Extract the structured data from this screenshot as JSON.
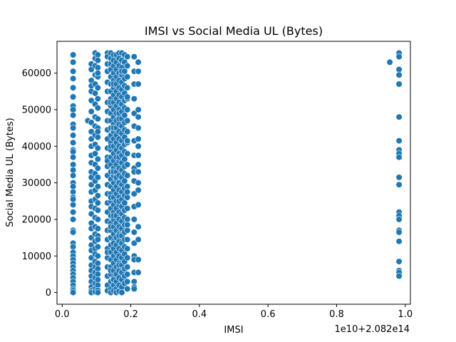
{
  "chart_data": {
    "type": "scatter",
    "title": "IMSI vs Social Media UL (Bytes)",
    "xlabel": "IMSI",
    "ylabel": "Social Media UL (Bytes)",
    "x_offset_label": "1e10+2.082e14",
    "xlim": [
      -0.015,
      1.015
    ],
    "ylim": [
      -3200,
      68700
    ],
    "x_ticks": [
      0.0,
      0.2,
      0.4,
      0.6,
      0.8,
      1.0
    ],
    "x_tick_labels": [
      "0.0",
      "0.2",
      "0.4",
      "0.6",
      "0.8",
      "1.0"
    ],
    "y_ticks": [
      0,
      10000,
      20000,
      30000,
      40000,
      50000,
      60000
    ],
    "y_tick_labels": [
      "0",
      "10000",
      "20000",
      "30000",
      "40000",
      "50000",
      "60000"
    ],
    "grid": false,
    "marker_color": "#1f77b4",
    "marker_edge_color": "#ffffff",
    "series": [
      {
        "x": [
          0.032,
          0.032,
          0.032,
          0.032,
          0.032,
          0.032,
          0.032,
          0.032,
          0.032,
          0.032,
          0.032,
          0.032,
          0.032,
          0.032,
          0.032,
          0.032,
          0.032,
          0.032,
          0.032,
          0.032,
          0.032,
          0.032,
          0.032,
          0.032,
          0.032,
          0.032,
          0.032,
          0.032,
          0.032,
          0.032,
          0.032,
          0.032,
          0.032,
          0.032,
          0.032,
          0.032,
          0.032,
          0.032,
          0.032,
          0.032,
          0.032,
          0.032,
          0.032,
          0.032,
          0.075,
          0.085,
          0.085,
          0.085,
          0.085,
          0.085,
          0.085,
          0.085,
          0.085,
          0.085,
          0.085,
          0.085,
          0.085,
          0.085,
          0.085,
          0.085,
          0.085,
          0.085,
          0.085,
          0.085,
          0.085,
          0.085,
          0.085,
          0.085,
          0.085,
          0.085,
          0.085,
          0.085,
          0.085,
          0.085,
          0.085,
          0.085,
          0.085,
          0.085,
          0.096,
          0.096,
          0.096,
          0.096,
          0.096,
          0.096,
          0.096,
          0.096,
          0.096,
          0.096,
          0.096,
          0.096,
          0.096,
          0.096,
          0.096,
          0.096,
          0.096,
          0.096,
          0.096,
          0.096,
          0.096,
          0.096,
          0.096,
          0.096,
          0.096,
          0.096,
          0.096,
          0.096,
          0.096,
          0.096,
          0.096,
          0.104,
          0.104,
          0.104,
          0.104,
          0.104,
          0.104,
          0.104,
          0.104,
          0.104,
          0.104,
          0.104,
          0.104,
          0.104,
          0.104,
          0.104,
          0.104,
          0.104,
          0.104,
          0.104,
          0.104,
          0.104,
          0.104,
          0.104,
          0.104,
          0.104,
          0.104,
          0.104,
          0.104,
          0.104,
          0.104,
          0.104,
          0.104,
          0.104,
          0.132,
          0.132,
          0.132,
          0.132,
          0.132,
          0.132,
          0.132,
          0.132,
          0.132,
          0.132,
          0.132,
          0.132,
          0.132,
          0.132,
          0.132,
          0.132,
          0.132,
          0.132,
          0.132,
          0.132,
          0.132,
          0.132,
          0.132,
          0.132,
          0.132,
          0.132,
          0.132,
          0.132,
          0.132,
          0.132,
          0.142,
          0.142,
          0.142,
          0.142,
          0.142,
          0.142,
          0.142,
          0.142,
          0.142,
          0.142,
          0.142,
          0.142,
          0.142,
          0.142,
          0.142,
          0.142,
          0.142,
          0.142,
          0.142,
          0.142,
          0.142,
          0.142,
          0.142,
          0.142,
          0.142,
          0.142,
          0.142,
          0.142,
          0.142,
          0.142,
          0.142,
          0.142,
          0.142,
          0.142,
          0.142,
          0.142,
          0.142,
          0.142,
          0.142,
          0.142,
          0.15,
          0.15,
          0.15,
          0.15,
          0.15,
          0.15,
          0.15,
          0.15,
          0.15,
          0.15,
          0.15,
          0.15,
          0.15,
          0.15,
          0.15,
          0.15,
          0.15,
          0.15,
          0.15,
          0.15,
          0.15,
          0.15,
          0.15,
          0.15,
          0.15,
          0.15,
          0.15,
          0.15,
          0.15,
          0.15,
          0.15,
          0.15,
          0.15,
          0.15,
          0.15,
          0.15,
          0.15,
          0.15,
          0.15,
          0.15,
          0.158,
          0.158,
          0.158,
          0.158,
          0.158,
          0.158,
          0.158,
          0.158,
          0.158,
          0.158,
          0.158,
          0.158,
          0.158,
          0.158,
          0.158,
          0.158,
          0.158,
          0.158,
          0.158,
          0.158,
          0.158,
          0.158,
          0.158,
          0.158,
          0.158,
          0.158,
          0.158,
          0.158,
          0.158,
          0.158,
          0.158,
          0.158,
          0.158,
          0.158,
          0.158,
          0.166,
          0.166,
          0.166,
          0.166,
          0.166,
          0.166,
          0.166,
          0.166,
          0.166,
          0.166,
          0.166,
          0.166,
          0.166,
          0.166,
          0.166,
          0.166,
          0.166,
          0.166,
          0.166,
          0.166,
          0.166,
          0.166,
          0.166,
          0.166,
          0.166,
          0.166,
          0.166,
          0.166,
          0.166,
          0.166,
          0.166,
          0.166,
          0.166,
          0.166,
          0.166,
          0.166,
          0.166,
          0.166,
          0.166,
          0.166,
          0.174,
          0.174,
          0.174,
          0.174,
          0.174,
          0.174,
          0.174,
          0.174,
          0.174,
          0.174,
          0.174,
          0.174,
          0.174,
          0.174,
          0.174,
          0.174,
          0.174,
          0.174,
          0.174,
          0.174,
          0.174,
          0.174,
          0.174,
          0.174,
          0.174,
          0.174,
          0.174,
          0.174,
          0.174,
          0.174,
          0.174,
          0.174,
          0.174,
          0.174,
          0.174,
          0.182,
          0.182,
          0.182,
          0.182,
          0.182,
          0.182,
          0.182,
          0.182,
          0.182,
          0.182,
          0.182,
          0.182,
          0.182,
          0.182,
          0.182,
          0.182,
          0.182,
          0.182,
          0.182,
          0.182,
          0.182,
          0.182,
          0.182,
          0.182,
          0.182,
          0.182,
          0.182,
          0.182,
          0.182,
          0.182,
          0.182,
          0.182,
          0.19,
          0.19,
          0.19,
          0.19,
          0.19,
          0.19,
          0.19,
          0.19,
          0.19,
          0.19,
          0.19,
          0.19,
          0.19,
          0.19,
          0.19,
          0.19,
          0.19,
          0.19,
          0.19,
          0.19,
          0.19,
          0.19,
          0.19,
          0.19,
          0.19,
          0.19,
          0.19,
          0.19,
          0.21,
          0.21,
          0.21,
          0.21,
          0.21,
          0.21,
          0.21,
          0.21,
          0.21,
          0.21,
          0.21,
          0.21,
          0.21,
          0.21,
          0.21,
          0.21,
          0.21,
          0.21,
          0.21,
          0.21,
          0.21,
          0.21,
          0.222,
          0.222,
          0.222,
          0.222,
          0.222,
          0.222,
          0.222,
          0.222,
          0.222,
          0.222,
          0.222,
          0.222,
          0.222,
          0.222,
          0.222,
          0.222,
          0.222,
          0.222,
          0.955,
          0.982,
          0.982,
          0.982,
          0.982,
          0.982,
          0.982,
          0.982,
          0.982,
          0.982,
          0.982,
          0.982,
          0.982,
          0.982,
          0.982,
          0.982,
          0.982,
          0.982,
          0.982,
          0.982,
          0.982,
          0.982,
          0.982
        ],
        "y": [
          65000,
          63000,
          60500,
          58500,
          56000,
          53500,
          51000,
          50000,
          48500,
          46000,
          43000,
          41000,
          39000,
          38500,
          37000,
          35000,
          33500,
          32000,
          30000,
          29000,
          27500,
          26000,
          24000,
          22000,
          20000,
          17000,
          16500,
          13500,
          12500,
          11000,
          10000,
          9000,
          8000,
          7000,
          6000,
          5000,
          4000,
          3000,
          2000,
          1000,
          500,
          0,
          45000,
          25500,
          47000,
          62500,
          61000,
          58000,
          56500,
          55000,
          52500,
          49500,
          46500,
          44000,
          42000,
          40000,
          37500,
          35500,
          33000,
          31500,
          29500,
          27500,
          25000,
          23500,
          21500,
          19000,
          17500,
          15000,
          13000,
          11500,
          9500,
          7500,
          6000,
          4500,
          3000,
          1500,
          500,
          0,
          65500,
          64000,
          62000,
          59500,
          57000,
          54500,
          51500,
          48000,
          45500,
          43000,
          40500,
          38000,
          35000,
          32500,
          30500,
          28000,
          25500,
          23000,
          20500,
          18000,
          16000,
          14000,
          12000,
          10500,
          8500,
          7000,
          5500,
          4000,
          2500,
          1000,
          200,
          65000,
          63500,
          61500,
          59000,
          56000,
          53000,
          50500,
          47500,
          45000,
          42500,
          39500,
          36500,
          34000,
          31500,
          29000,
          26500,
          24500,
          22500,
          20000,
          17500,
          15500,
          14500,
          12500,
          10000,
          8000,
          6500,
          5000,
          3500,
          2000,
          600,
          0,
          44000,
          60000,
          65500,
          64500,
          62500,
          60500,
          57500,
          55000,
          52000,
          49500,
          47000,
          44500,
          42000,
          39500,
          37000,
          34500,
          32000,
          29500,
          27000,
          24500,
          22000,
          19500,
          17000,
          14500,
          12000,
          9500,
          7000,
          4500,
          2000,
          500,
          36000,
          11000,
          65500,
          64000,
          62500,
          61000,
          59000,
          57000,
          55000,
          53000,
          51000,
          49000,
          47000,
          45000,
          43000,
          41000,
          39000,
          37000,
          35000,
          33000,
          31000,
          29000,
          27000,
          25000,
          23000,
          21000,
          19000,
          17000,
          15000,
          13000,
          11000,
          9000,
          7000,
          5000,
          3000,
          1000,
          0,
          52000,
          26000,
          18000,
          6000,
          40000,
          65000,
          63500,
          62000,
          60000,
          58000,
          56000,
          54000,
          52000,
          50000,
          48000,
          46000,
          44000,
          42000,
          40000,
          38000,
          36000,
          34000,
          32000,
          30000,
          28000,
          26000,
          24000,
          22000,
          20000,
          18000,
          16000,
          14000,
          12000,
          10000,
          8000,
          6000,
          4000,
          2000,
          500,
          57000,
          45000,
          33000,
          21000,
          13500,
          3500,
          65000,
          63000,
          61000,
          59000,
          57000,
          55000,
          53000,
          51000,
          49000,
          47000,
          45000,
          43000,
          41000,
          39000,
          37000,
          35000,
          33000,
          31000,
          29000,
          27000,
          25000,
          23000,
          21000,
          19000,
          17000,
          15000,
          13000,
          11000,
          9000,
          7000,
          5000,
          3000,
          1000,
          0,
          31500,
          65500,
          64000,
          62000,
          60000,
          58000,
          56000,
          54000,
          52000,
          50000,
          48000,
          46000,
          44000,
          42000,
          40000,
          38000,
          36000,
          34000,
          32000,
          30000,
          28000,
          26000,
          24000,
          22000,
          20000,
          18000,
          16000,
          14000,
          12000,
          10000,
          8000,
          6000,
          4000,
          2000,
          300,
          49000,
          37000,
          25000,
          15500,
          7500,
          47500,
          65500,
          63500,
          61500,
          59500,
          57500,
          55500,
          53500,
          51500,
          49500,
          47500,
          45500,
          43500,
          41500,
          39500,
          37500,
          35500,
          33500,
          31500,
          29500,
          27500,
          25500,
          23500,
          21500,
          19500,
          17500,
          15500,
          13500,
          11500,
          9500,
          7500,
          5500,
          3500,
          1500,
          0,
          60500,
          65000,
          63000,
          60500,
          58500,
          56500,
          54500,
          52500,
          50500,
          48500,
          46500,
          44500,
          42500,
          40500,
          38500,
          36500,
          34500,
          32500,
          30500,
          28500,
          26500,
          24500,
          22500,
          20500,
          18500,
          16500,
          14500,
          12500,
          10500,
          8500,
          6500,
          4500,
          2500,
          64500,
          62000,
          59000,
          56000,
          53000,
          50000,
          47000,
          44000,
          41000,
          38000,
          35000,
          32000,
          29000,
          26000,
          23000,
          20000,
          17000,
          14500,
          12000,
          9500,
          7000,
          5000,
          3000,
          1000,
          41500,
          27500,
          18500,
          53500,
          64500,
          60500,
          57000,
          53000,
          49000,
          45500,
          41500,
          37500,
          34000,
          30500,
          27000,
          23500,
          20000,
          16500,
          13500,
          10000,
          9000,
          5500,
          3000,
          1500,
          1000,
          33000,
          63000,
          60500,
          57000,
          50000,
          48000,
          45000,
          40000,
          37500,
          35000,
          33000,
          30000,
          28000,
          24000,
          18000,
          14500,
          9000,
          5500,
          42000,
          63000,
          65500,
          64500,
          61000,
          59500,
          57000,
          48000,
          41500,
          39000,
          38000,
          37000,
          31500,
          29500,
          22000,
          21000,
          20000,
          17000,
          16500,
          14000,
          8500,
          6000,
          5500,
          4500
        ]
      }
    ]
  }
}
